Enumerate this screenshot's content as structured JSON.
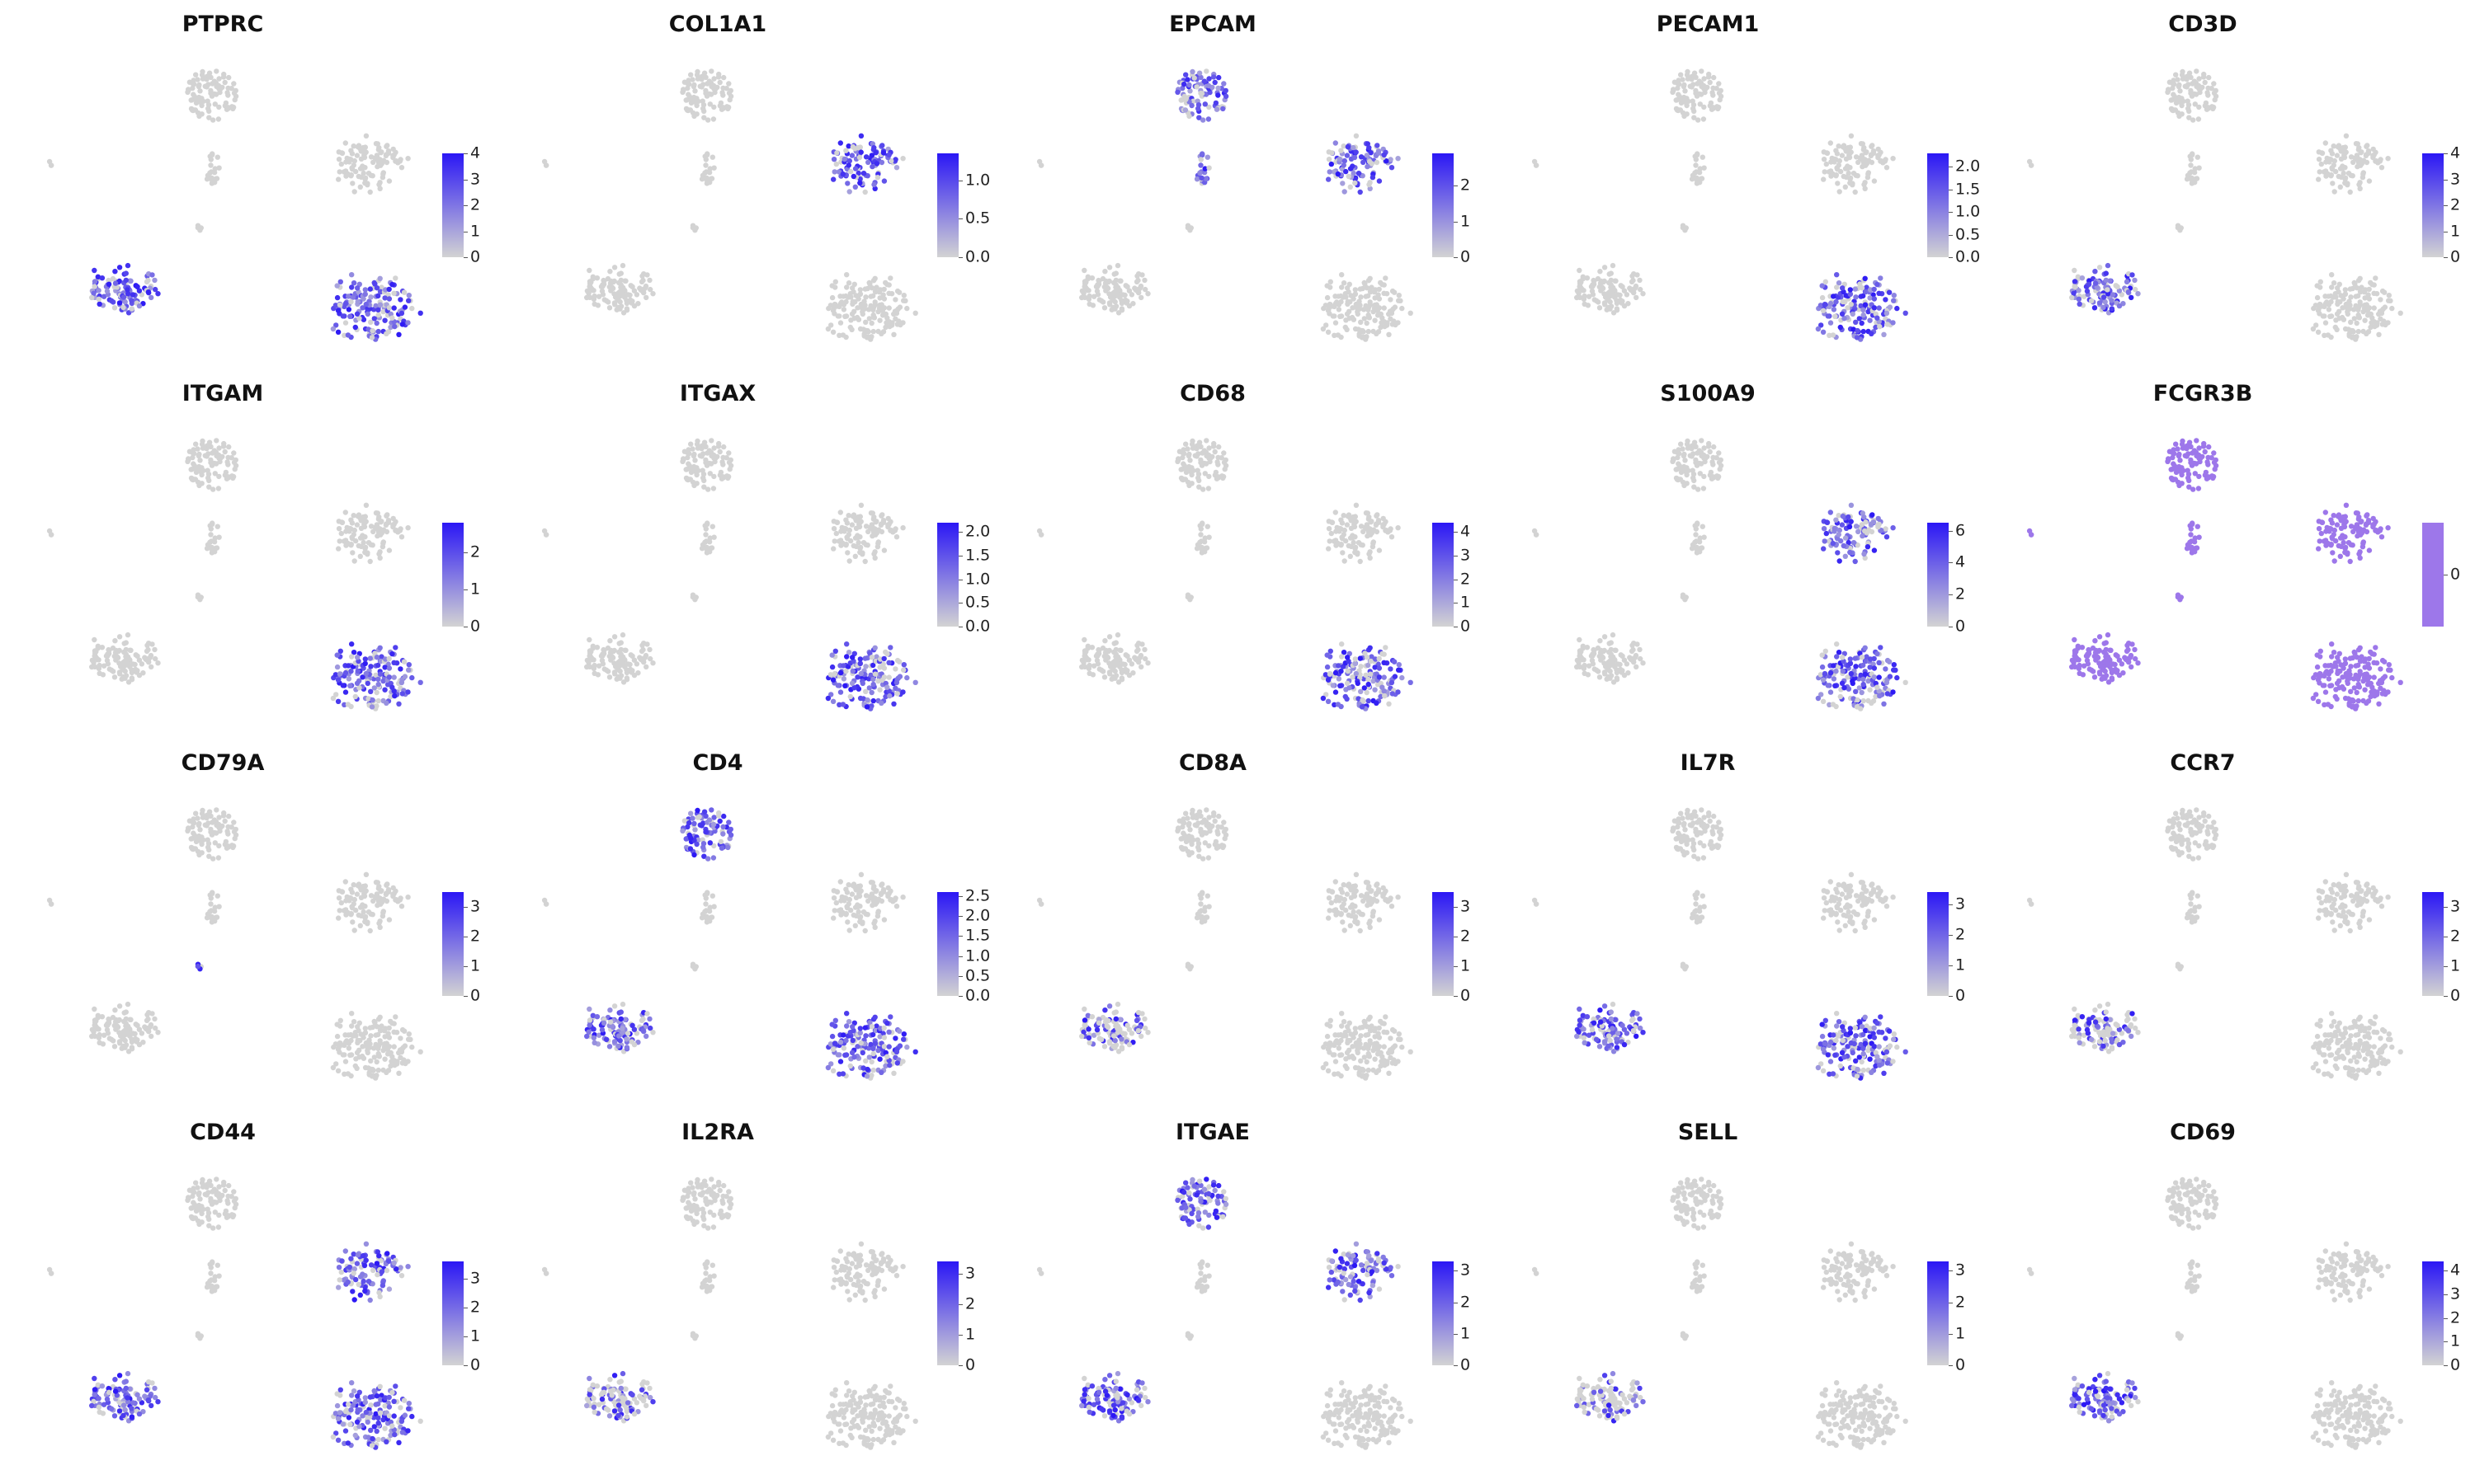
{
  "figure": {
    "type": "feature_plot_grid",
    "colors": {
      "low": "#d3d3d3",
      "high": "#2b17f5",
      "background": "#ffffff",
      "constant": "#9d77ea"
    }
  },
  "chart_data": [
    {
      "type": "scatter",
      "title": "PTPRC",
      "legend_ticks": [
        "0",
        "1",
        "2",
        "3",
        "4"
      ],
      "color_range": [
        0,
        4
      ],
      "high_regions": [
        "bottom-left",
        "bottom-right"
      ]
    },
    {
      "type": "scatter",
      "title": "COL1A1",
      "legend_ticks": [
        "0.0",
        "0.5",
        "1.0"
      ],
      "color_range": [
        0,
        1.35
      ],
      "high_regions": [
        "right"
      ]
    },
    {
      "type": "scatter",
      "title": "EPCAM",
      "legend_ticks": [
        "0",
        "1",
        "2"
      ],
      "color_range": [
        0,
        2.9
      ],
      "high_regions": [
        "top",
        "right",
        "mid-small"
      ]
    },
    {
      "type": "scatter",
      "title": "PECAM1",
      "legend_ticks": [
        "0.0",
        "0.5",
        "1.0",
        "1.5",
        "2.0"
      ],
      "color_range": [
        0,
        2.3
      ],
      "high_regions": [
        "bottom-right"
      ]
    },
    {
      "type": "scatter",
      "title": "CD3D",
      "legend_ticks": [
        "0",
        "1",
        "2",
        "3",
        "4"
      ],
      "color_range": [
        0,
        4
      ],
      "high_regions": [
        "bottom-left"
      ]
    },
    {
      "type": "scatter",
      "title": "ITGAM",
      "legend_ticks": [
        "0",
        "1",
        "2"
      ],
      "color_range": [
        0,
        2.8
      ],
      "high_regions": [
        "bottom-right"
      ]
    },
    {
      "type": "scatter",
      "title": "ITGAX",
      "legend_ticks": [
        "0.0",
        "0.5",
        "1.0",
        "1.5",
        "2.0"
      ],
      "color_range": [
        0,
        2.2
      ],
      "high_regions": [
        "bottom-right"
      ]
    },
    {
      "type": "scatter",
      "title": "CD68",
      "legend_ticks": [
        "0",
        "1",
        "2",
        "3",
        "4"
      ],
      "color_range": [
        0,
        4.4
      ],
      "high_regions": [
        "bottom-right"
      ]
    },
    {
      "type": "scatter",
      "title": "S100A9",
      "legend_ticks": [
        "0",
        "2",
        "4",
        "6"
      ],
      "color_range": [
        0,
        6.5
      ],
      "high_regions": [
        "bottom-right",
        "right"
      ]
    },
    {
      "type": "scatter",
      "title": "FCGR3B",
      "legend_ticks": [
        "0"
      ],
      "color_range": [
        0,
        0
      ],
      "high_regions": [
        "all"
      ]
    },
    {
      "type": "scatter",
      "title": "CD79A",
      "legend_ticks": [
        "0",
        "1",
        "2",
        "3"
      ],
      "color_range": [
        0,
        3.5
      ],
      "high_regions": [
        "tiny"
      ]
    },
    {
      "type": "scatter",
      "title": "CD4",
      "legend_ticks": [
        "0.0",
        "0.5",
        "1.0",
        "1.5",
        "2.0",
        "2.5"
      ],
      "color_range": [
        0,
        2.6
      ],
      "high_regions": [
        "top",
        "bottom-right",
        "bottom-left"
      ]
    },
    {
      "type": "scatter",
      "title": "CD8A",
      "legend_ticks": [
        "0",
        "1",
        "2",
        "3"
      ],
      "color_range": [
        0,
        3.5
      ],
      "high_regions": [
        "bottom-left-tail"
      ]
    },
    {
      "type": "scatter",
      "title": "IL7R",
      "legend_ticks": [
        "0",
        "1",
        "2",
        "3"
      ],
      "color_range": [
        0,
        3.4
      ],
      "high_regions": [
        "bottom-left",
        "bottom-right"
      ]
    },
    {
      "type": "scatter",
      "title": "CCR7",
      "legend_ticks": [
        "0",
        "1",
        "2",
        "3"
      ],
      "color_range": [
        0,
        3.5
      ],
      "high_regions": [
        "bottom-left-small"
      ]
    },
    {
      "type": "scatter",
      "title": "CD44",
      "legend_ticks": [
        "0",
        "1",
        "2",
        "3"
      ],
      "color_range": [
        0,
        3.6
      ],
      "high_regions": [
        "bottom-left",
        "bottom-right",
        "right"
      ]
    },
    {
      "type": "scatter",
      "title": "IL2RA",
      "legend_ticks": [
        "0",
        "1",
        "2",
        "3"
      ],
      "color_range": [
        0,
        3.4
      ],
      "high_regions": [
        "bottom-left-edge"
      ]
    },
    {
      "type": "scatter",
      "title": "ITGAE",
      "legend_ticks": [
        "0",
        "1",
        "2",
        "3"
      ],
      "color_range": [
        0,
        3.3
      ],
      "high_regions": [
        "top",
        "bottom-left",
        "right"
      ]
    },
    {
      "type": "scatter",
      "title": "SELL",
      "legend_ticks": [
        "0",
        "1",
        "2",
        "3"
      ],
      "color_range": [
        0,
        3.3
      ],
      "high_regions": [
        "bottom-left-small"
      ]
    },
    {
      "type": "scatter",
      "title": "CD69",
      "legend_ticks": [
        "0",
        "1",
        "2",
        "3",
        "4"
      ],
      "color_range": [
        0,
        4.4
      ],
      "high_regions": [
        "bottom-left"
      ]
    }
  ]
}
